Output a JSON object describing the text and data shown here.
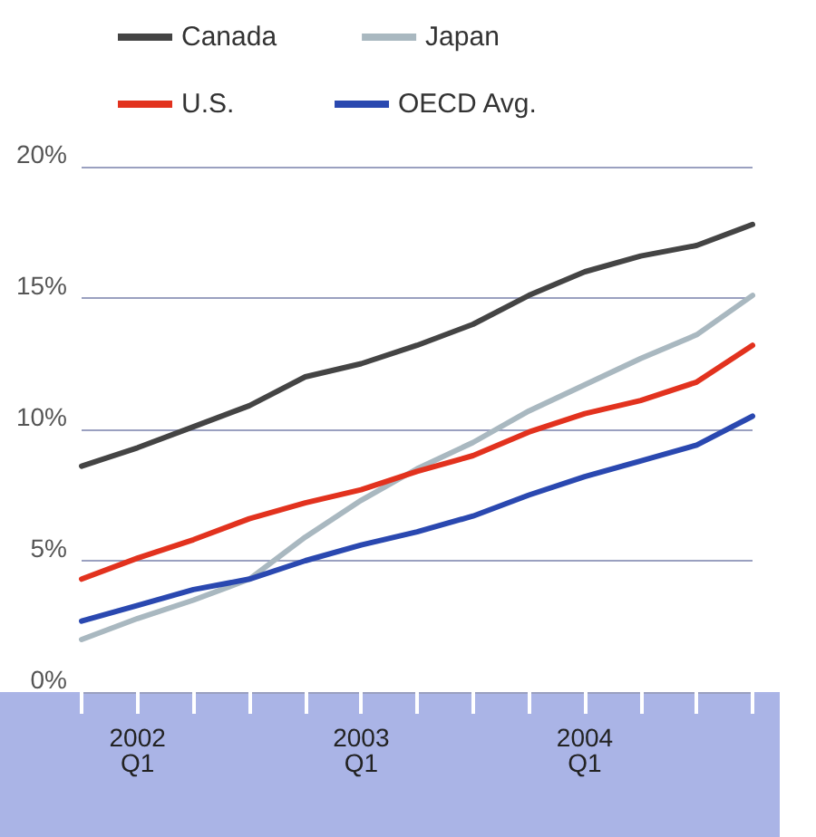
{
  "chart_data": {
    "type": "line",
    "categories": [
      null,
      "2002\nQ1",
      null,
      null,
      null,
      "2003\nQ1",
      null,
      null,
      null,
      "2004\nQ1",
      null,
      null,
      null
    ],
    "series": [
      {
        "name": "Canada",
        "color": "#444444",
        "values": [
          8.6,
          9.3,
          10.1,
          10.9,
          12.0,
          12.5,
          13.2,
          14.0,
          15.1,
          16.0,
          16.6,
          17.0,
          17.8
        ]
      },
      {
        "name": "Japan",
        "color": "#a9b8c0",
        "values": [
          2.0,
          2.8,
          3.5,
          4.3,
          5.9,
          7.3,
          8.5,
          9.5,
          10.7,
          11.7,
          12.7,
          13.6,
          15.1
        ]
      },
      {
        "name": "U.S.",
        "color": "#e2321e",
        "values": [
          4.3,
          5.1,
          5.8,
          6.6,
          7.2,
          7.7,
          8.4,
          9.0,
          9.9,
          10.6,
          11.1,
          11.8,
          13.2
        ]
      },
      {
        "name": "OECD Avg.",
        "color": "#2a48b0",
        "values": [
          2.7,
          3.3,
          3.9,
          4.3,
          5.0,
          5.6,
          6.1,
          6.7,
          7.5,
          8.2,
          8.8,
          9.4,
          10.5
        ]
      }
    ],
    "ylim": [
      0,
      20
    ],
    "yticks": [
      {
        "value": 0,
        "label": "0%"
      },
      {
        "value": 5,
        "label": "5%"
      },
      {
        "value": 10,
        "label": "10%"
      },
      {
        "value": 15,
        "label": "15%"
      },
      {
        "value": 20,
        "label": "20%"
      }
    ],
    "grid": "y",
    "legend": "top left",
    "marker": "none",
    "line_style": "solid"
  }
}
